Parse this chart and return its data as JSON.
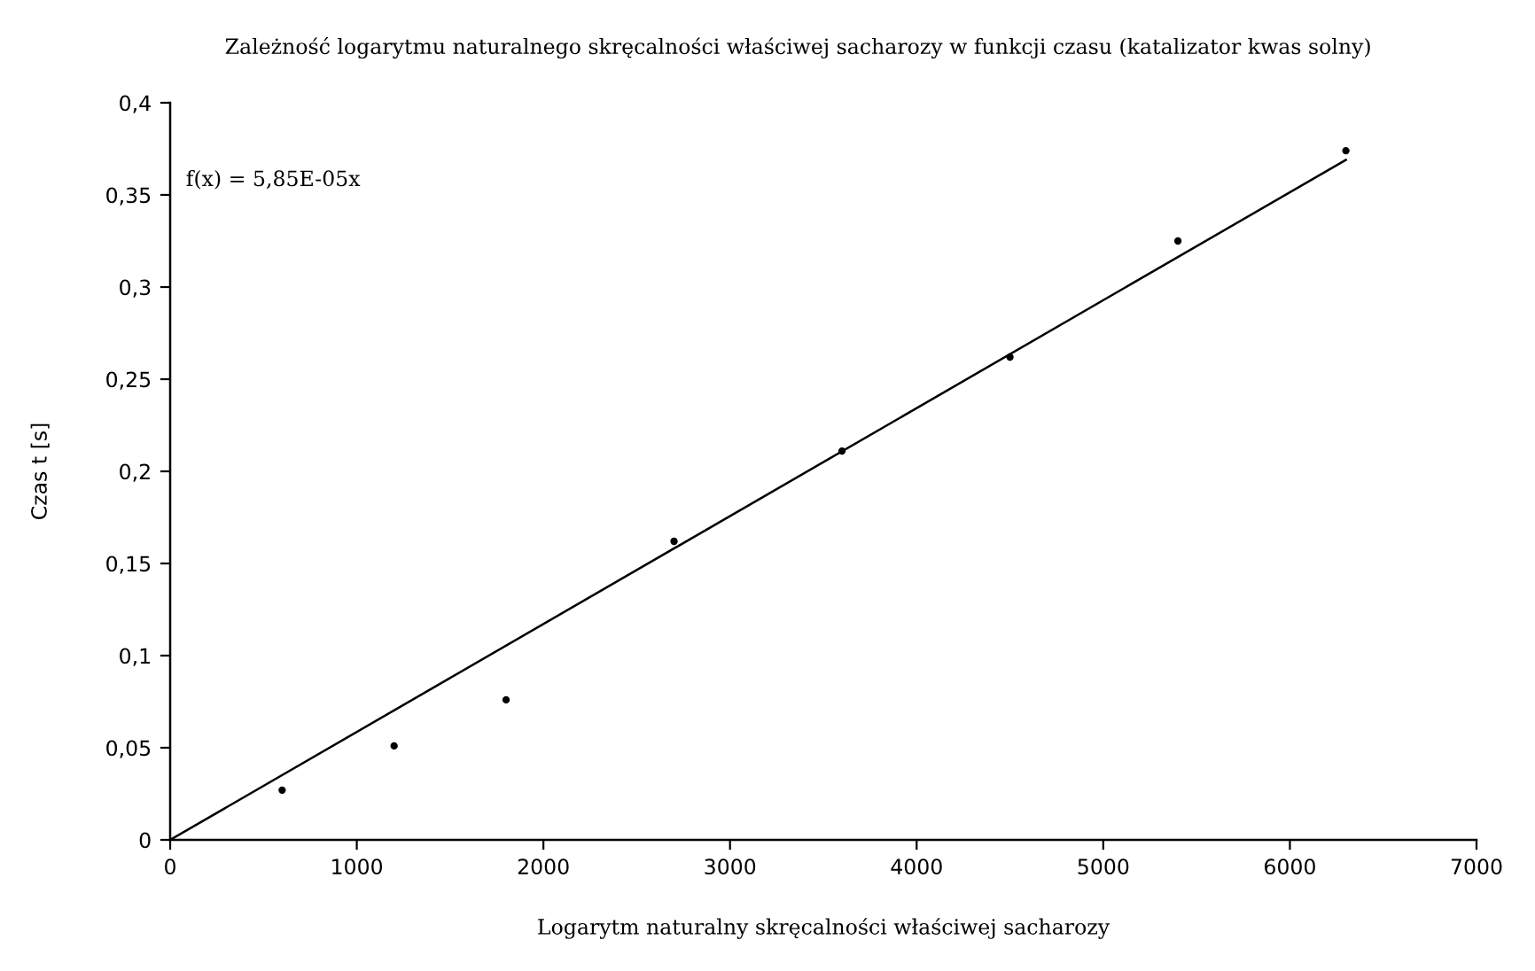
{
  "chart_data": {
    "type": "scatter",
    "title": "Zależność logarytmu naturalnego skręcalności właściwej sacharozy w funkcji czasu (katalizator kwas solny)",
    "xlabel": "Logarytm naturalny skręcalności właściwej sacharozy",
    "ylabel": "Czas t [s]",
    "annotations": [
      "f(x) = 5,85E-05x"
    ],
    "series": [
      {
        "color": "#000000",
        "marker": "circle",
        "x": [
          600,
          1200,
          1800,
          2700,
          3600,
          4500,
          5400,
          6300
        ],
        "values": [
          0.027,
          0.051,
          0.076,
          0.162,
          0.211,
          0.262,
          0.325,
          0.374
        ]
      },
      {
        "type": "line",
        "color": "#000000",
        "line_style": "solid",
        "marker": "none",
        "x": [
          0,
          6300
        ],
        "values": [
          0,
          0.369
        ]
      }
    ],
    "xlim": [
      0,
      7000
    ],
    "xticks": [
      0,
      1000,
      2000,
      3000,
      4000,
      5000,
      6000,
      7000
    ],
    "ylim": [
      0,
      0.4
    ],
    "yticks": [
      0,
      {
        "value": 0.05,
        "label": "0,05"
      },
      {
        "value": 0.1,
        "label": "0,1"
      },
      {
        "value": 0.15,
        "label": "0,15"
      },
      {
        "value": 0.2,
        "label": "0,2"
      },
      {
        "value": 0.25,
        "label": "0,25"
      },
      {
        "value": 0.3,
        "label": "0,3"
      },
      {
        "value": 0.35,
        "label": "0,35"
      },
      {
        "value": 0.4,
        "label": "0,4"
      }
    ]
  }
}
